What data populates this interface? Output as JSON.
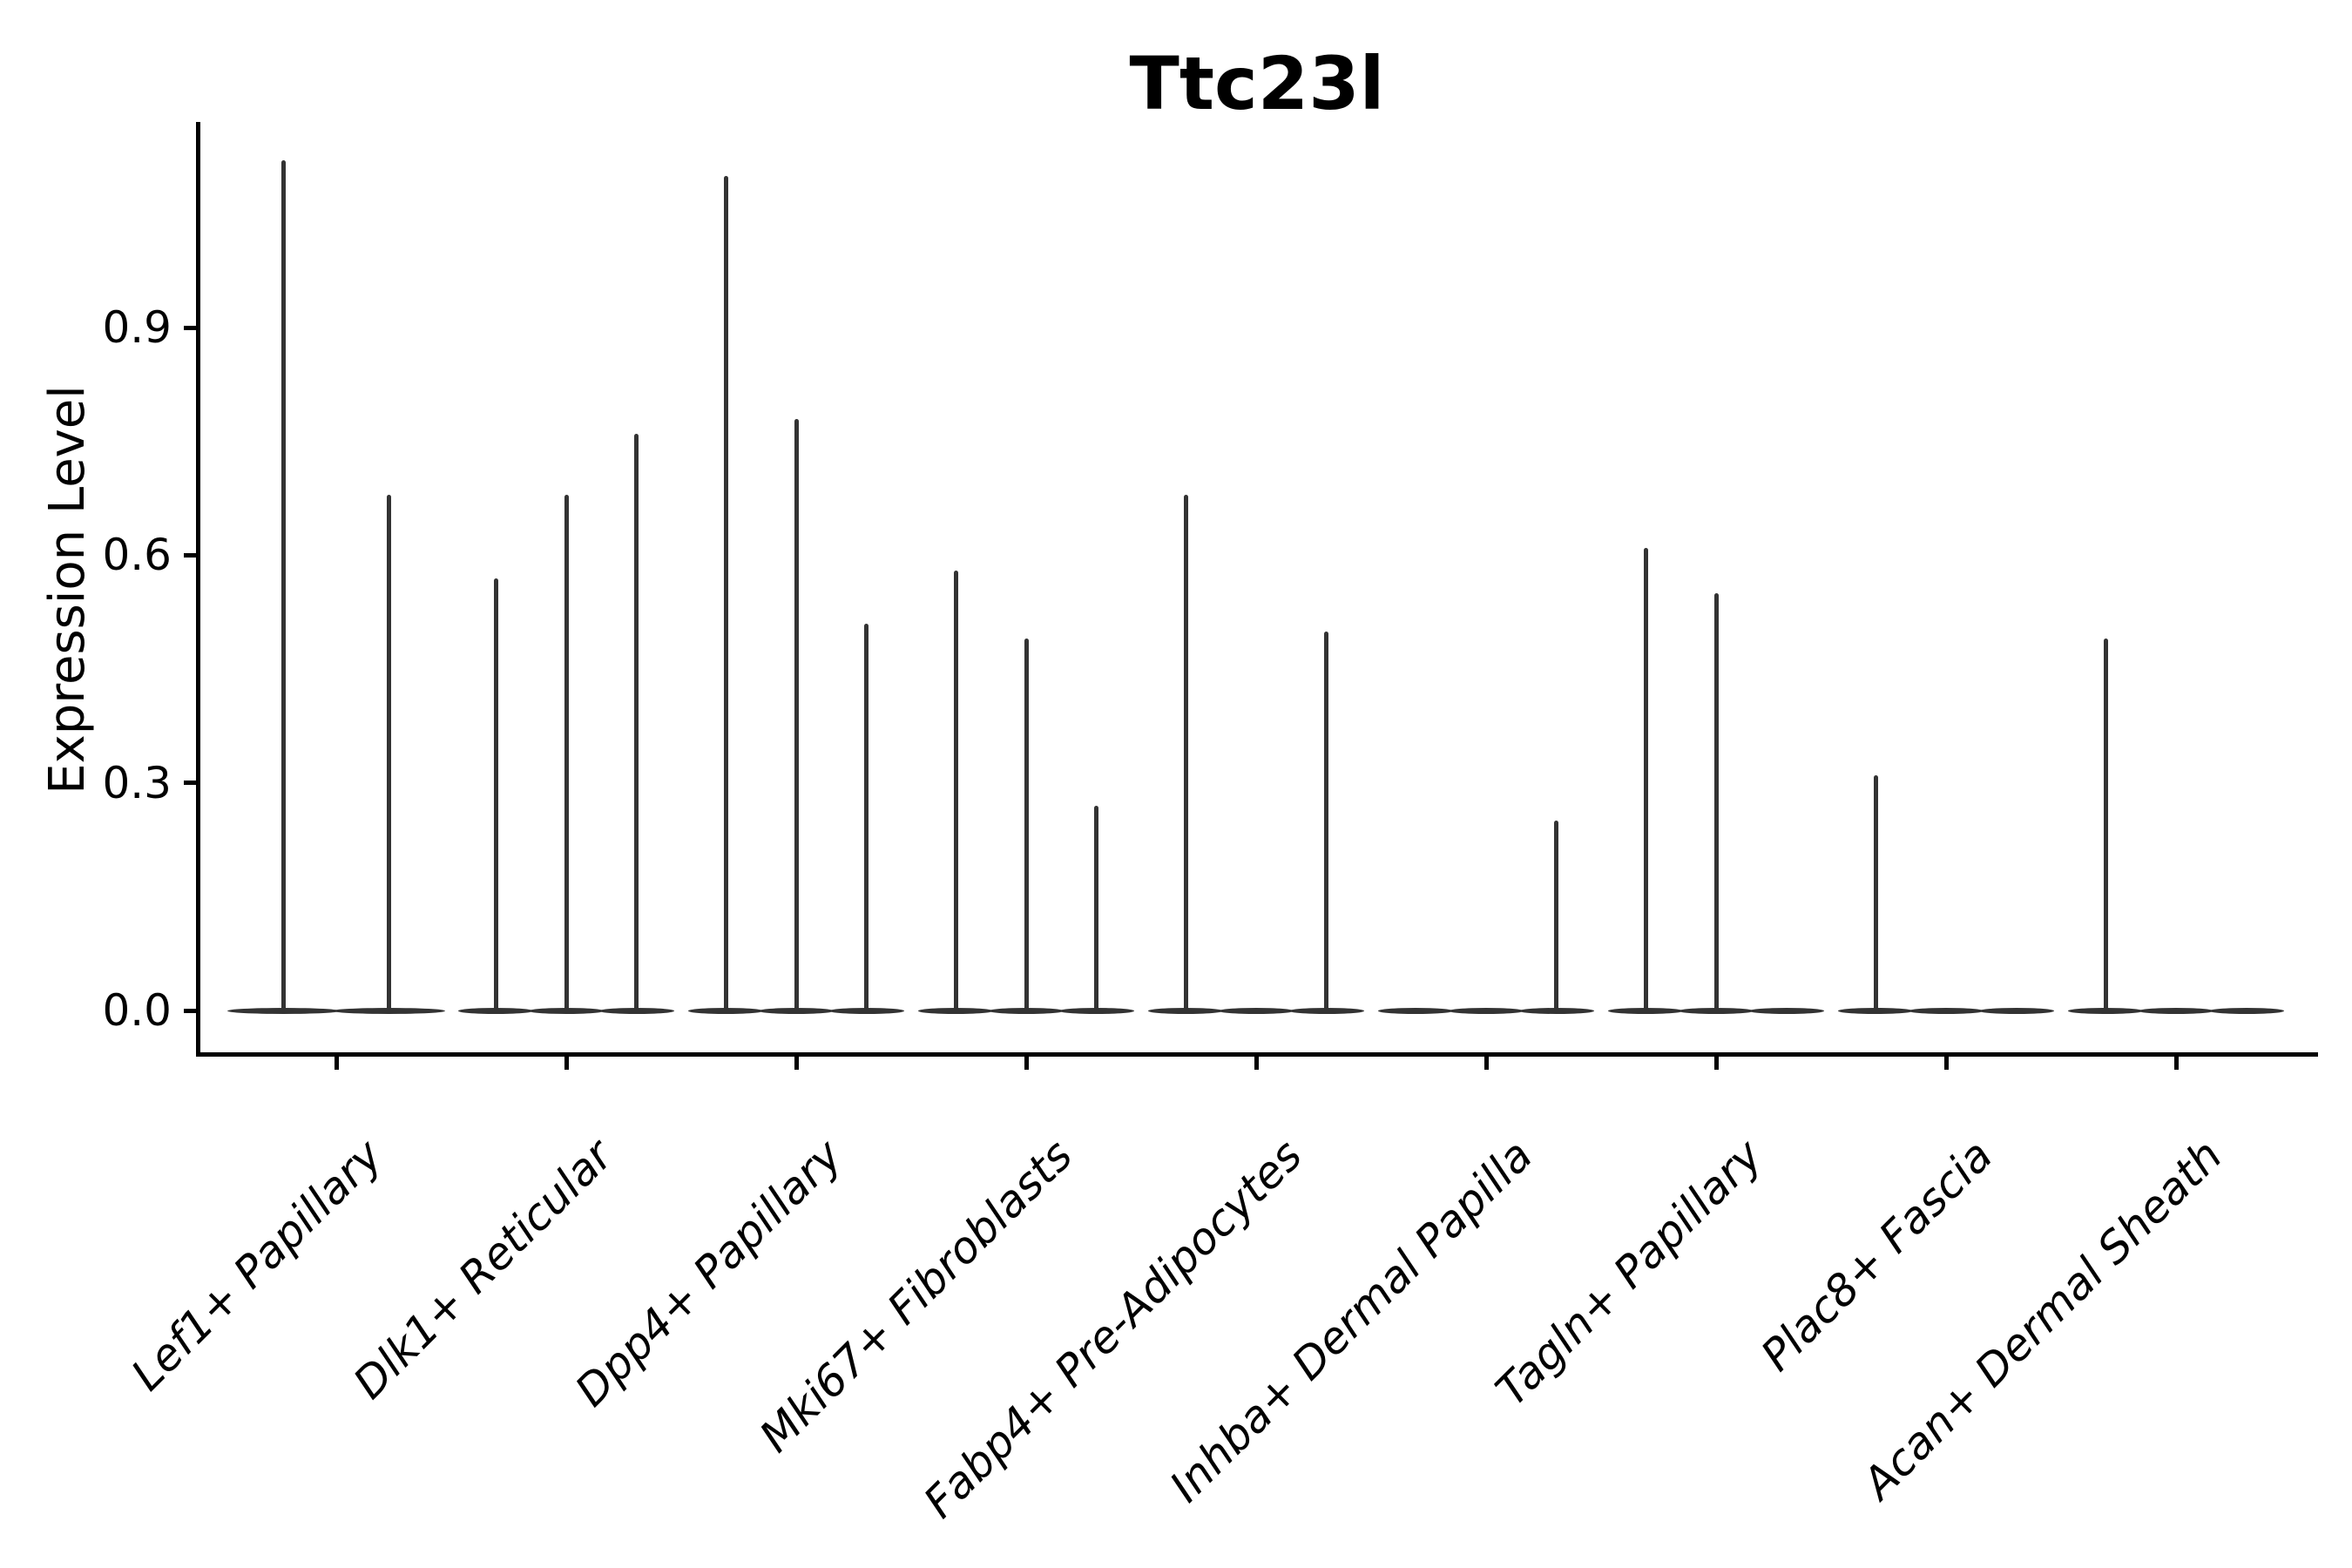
{
  "figure": {
    "title": "Ttc23l",
    "ylabel": "Expression Level"
  },
  "chart_data": {
    "type": "violin",
    "title": "Ttc23l",
    "xlabel": "",
    "ylabel": "Expression Level",
    "ylim": [
      0,
      1.17
    ],
    "yticks": [
      0.0,
      0.3,
      0.6,
      0.9
    ],
    "ytick_labels": [
      "0.0",
      "0.3",
      "0.6",
      "0.9"
    ],
    "grid": false,
    "legend": "none",
    "categories": [
      "Lef1+ Papillary",
      "Dlk1+ Reticular",
      "Dpp4+ Papillary",
      "Mki67+ Fibroblasts",
      "Fabp4+ Pre-Adipocytes",
      "Inhba+ Dermal Papilla",
      "Tagln+ Papillary",
      "Plac8+ Fascia",
      "Acan+ Dermal Sheath"
    ],
    "description": "Single-cell expression violin plot; each category holds 2-3 dodged violins that are flat at 0 with a thin spike rising to the maximum expression value. A maximum of 0 means a flat violin with no spike.",
    "violins": [
      {
        "category": "Lef1+ Papillary",
        "maxima": [
          1.12,
          0.68
        ]
      },
      {
        "category": "Dlk1+ Reticular",
        "maxima": [
          0.57,
          0.68,
          0.76
        ]
      },
      {
        "category": "Dpp4+ Papillary",
        "maxima": [
          1.1,
          0.78,
          0.51
        ]
      },
      {
        "category": "Mki67+ Fibroblasts",
        "maxima": [
          0.58,
          0.49,
          0.27
        ]
      },
      {
        "category": "Fabp4+ Pre-Adipocytes",
        "maxima": [
          0.68,
          0,
          0.5
        ]
      },
      {
        "category": "Inhba+ Dermal Papilla",
        "maxima": [
          0,
          0,
          0.25
        ]
      },
      {
        "category": "Tagln+ Papillary",
        "maxima": [
          0.61,
          0.55,
          0
        ]
      },
      {
        "category": "Plac8+ Fascia",
        "maxima": [
          0.31,
          0,
          0
        ]
      },
      {
        "category": "Acan+ Dermal Sheath",
        "maxima": [
          0.49,
          0,
          0
        ]
      }
    ],
    "colors": {
      "violin": "#333333",
      "axis": "#000000",
      "text": "#000000",
      "background": "#ffffff"
    }
  }
}
